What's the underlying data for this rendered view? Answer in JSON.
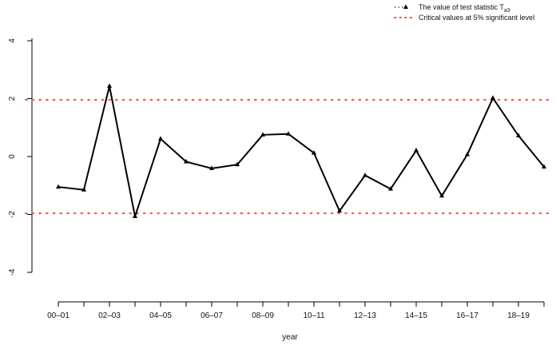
{
  "chart_data": {
    "type": "line",
    "xlabel": "year",
    "ylabel": "",
    "ylim": [
      -4.8,
      4.8
    ],
    "yticks": [
      -4,
      -2,
      0,
      2,
      4
    ],
    "x_tick_labels": [
      "00–01",
      "02–03",
      "04–05",
      "06–07",
      "08–09",
      "10–11",
      "12–13",
      "14–15",
      "16–17",
      "18–19"
    ],
    "x_tick_positions": [
      1,
      3,
      5,
      7,
      9,
      11,
      13,
      15,
      17,
      19
    ],
    "x_minor_ticks": [
      2,
      4,
      6,
      8,
      10,
      12,
      14,
      16,
      18,
      20
    ],
    "xlim": [
      0.5,
      20.5
    ],
    "series": [
      {
        "name": "The value of test statistic T",
        "name_subscript": "a3",
        "color": "#000000",
        "x": [
          1,
          2,
          3,
          4,
          5,
          6,
          7,
          8,
          9,
          10,
          11,
          12,
          13,
          14,
          15,
          16,
          17,
          18,
          19,
          20
        ],
        "y": [
          -1.05,
          -1.15,
          2.43,
          -2.07,
          0.61,
          -0.18,
          -0.41,
          -0.28,
          0.75,
          0.78,
          0.12,
          -1.88,
          -0.65,
          -1.12,
          0.21,
          -1.36,
          0.07,
          2.02,
          0.72,
          -0.36
        ]
      }
    ],
    "reference_lines": {
      "name": "Critical values at 5% significant level",
      "color": "#ff5533",
      "values": [
        1.96,
        -1.96
      ]
    },
    "legend_position": "top-right",
    "grid": false
  }
}
